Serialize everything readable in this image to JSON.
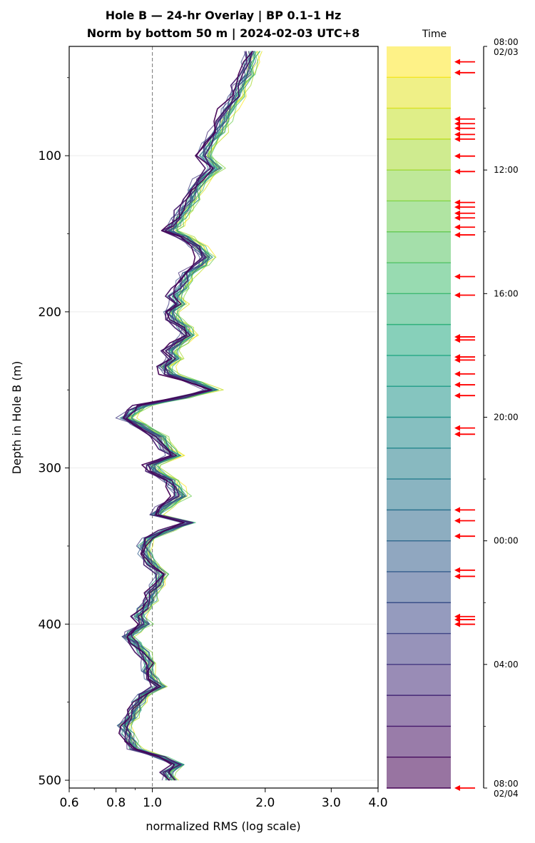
{
  "chart_data": {
    "type": "line",
    "title": "Hole B — 24-hr Overlay  |  BP 0.1–1 Hz",
    "subtitle": "Norm by bottom 50 m  |  2024-02-03 UTC+8",
    "xlabel": "normalized RMS  (log scale)",
    "ylabel": "Depth in Hole B (m)",
    "x_scale": "log",
    "xlim": [
      0.6,
      4.0
    ],
    "ylim": [
      505,
      30
    ],
    "x_ticks": [
      "0.6",
      "0.8",
      "1.0",
      "2.0",
      "3.0",
      "4.0"
    ],
    "x_tick_values": [
      0.6,
      0.8,
      1.0,
      2.0,
      3.0,
      4.0
    ],
    "y_ticks": [
      "100",
      "200",
      "300",
      "400",
      "500"
    ],
    "y_tick_values": [
      100,
      200,
      300,
      400,
      500
    ],
    "grid": "horizontal at major y ticks",
    "reference_line": {
      "x": 1.0,
      "style": "dashed gray"
    },
    "profile": {
      "depth": [
        33,
        40,
        48,
        55,
        62,
        70,
        78,
        85,
        92,
        100,
        108,
        115,
        122,
        128,
        135,
        140,
        145,
        148,
        152,
        158,
        165,
        170,
        175,
        180,
        185,
        190,
        195,
        200,
        205,
        210,
        215,
        220,
        225,
        230,
        235,
        240,
        245,
        250,
        255,
        260,
        263,
        268,
        272,
        280,
        288,
        292,
        298,
        302,
        308,
        312,
        318,
        325,
        330,
        335,
        340,
        345,
        350,
        355,
        362,
        368,
        375,
        380,
        385,
        390,
        395,
        400,
        405,
        408,
        412,
        418,
        425,
        430,
        435,
        440,
        445,
        450,
        455,
        460,
        465,
        470,
        475,
        480,
        485,
        490,
        495,
        500
      ],
      "rms": [
        1.85,
        1.82,
        1.8,
        1.72,
        1.68,
        1.6,
        1.55,
        1.5,
        1.42,
        1.38,
        1.48,
        1.36,
        1.3,
        1.28,
        1.22,
        1.18,
        1.15,
        1.12,
        1.22,
        1.32,
        1.4,
        1.35,
        1.25,
        1.22,
        1.2,
        1.15,
        1.18,
        1.12,
        1.15,
        1.22,
        1.25,
        1.18,
        1.12,
        1.15,
        1.08,
        1.12,
        1.3,
        1.45,
        1.2,
        0.95,
        0.9,
        0.85,
        0.92,
        1.05,
        1.1,
        1.15,
        1.0,
        1.02,
        1.12,
        1.15,
        1.2,
        1.08,
        1.02,
        1.25,
        1.1,
        0.98,
        0.95,
        0.96,
        1.0,
        1.06,
        1.03,
        1.0,
        0.99,
        0.95,
        0.92,
        0.96,
        0.89,
        0.86,
        0.9,
        0.95,
        0.98,
        0.97,
        1.0,
        1.05,
        0.95,
        0.92,
        0.9,
        0.88,
        0.84,
        0.86,
        0.88,
        0.9,
        1.05,
        1.18,
        1.1,
        1.12
      ]
    },
    "time_axis": {
      "label": "Time",
      "start_label": "08:00\n02/03",
      "end_label": "08:00\n02/04",
      "tick_labels": [
        "08:00\n02/03",
        "12:00",
        "16:00",
        "20:00",
        "00:00",
        "04:00",
        "08:00\n02/04"
      ],
      "tick_hours": [
        0,
        4,
        8,
        12,
        16,
        20,
        24
      ],
      "bins": 24,
      "colormap": "viridis (reversed: top yellow, bottom purple)",
      "event_arrow_hours": [
        0.5,
        0.85,
        2.35,
        2.5,
        2.65,
        2.85,
        3.0,
        3.55,
        4.05,
        5.05,
        5.2,
        5.4,
        5.55,
        5.85,
        6.1,
        7.45,
        8.05,
        9.4,
        9.5,
        10.05,
        10.15,
        10.6,
        10.95,
        11.3,
        12.35,
        12.55,
        15.0,
        15.35,
        15.85,
        16.95,
        17.15,
        18.45,
        18.55,
        18.7,
        24.0
      ],
      "event_color": "#ff0000"
    },
    "colors": {
      "reference_line": "#808080",
      "grid": "#e6e6e6",
      "arrow": "#ff0000"
    }
  }
}
